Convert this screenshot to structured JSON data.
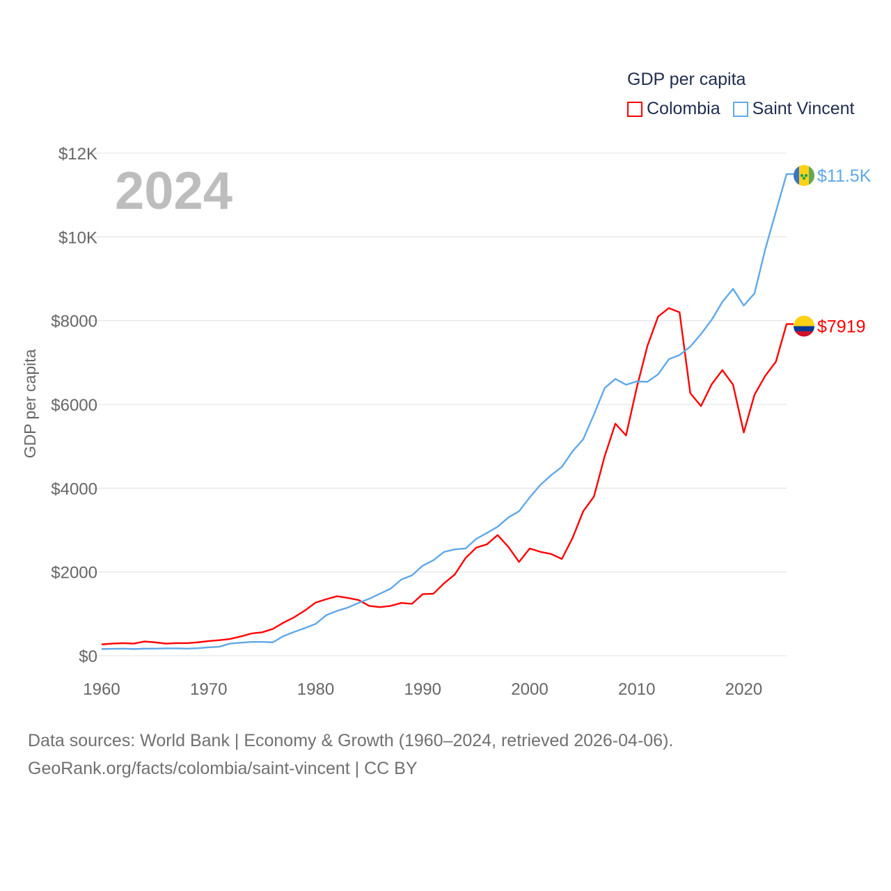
{
  "chart_data": {
    "type": "line",
    "title": "GDP per capita",
    "year_label": "2024",
    "xlabel": "",
    "ylabel": "GDP per capita",
    "xlim": [
      1960,
      2024
    ],
    "ylim": [
      0,
      12000
    ],
    "x_ticks": [
      1960,
      1970,
      1980,
      1990,
      2000,
      2010,
      2020
    ],
    "x_tick_labels": [
      "1960",
      "1970",
      "1980",
      "1990",
      "2000",
      "2010",
      "2020"
    ],
    "y_ticks": [
      0,
      2000,
      4000,
      6000,
      8000,
      10000,
      12000
    ],
    "y_tick_labels": [
      "$0",
      "$2000",
      "$4000",
      "$6000",
      "$8000",
      "$10K",
      "$12K"
    ],
    "grid": true,
    "legend_position": "top-right",
    "x": [
      1960,
      1961,
      1962,
      1963,
      1964,
      1965,
      1966,
      1967,
      1968,
      1969,
      1970,
      1971,
      1972,
      1973,
      1974,
      1975,
      1976,
      1977,
      1978,
      1979,
      1980,
      1981,
      1982,
      1983,
      1984,
      1985,
      1986,
      1987,
      1988,
      1989,
      1990,
      1991,
      1992,
      1993,
      1994,
      1995,
      1996,
      1997,
      1998,
      1999,
      2000,
      2001,
      2002,
      2003,
      2004,
      2005,
      2006,
      2007,
      2008,
      2009,
      2010,
      2011,
      2012,
      2013,
      2014,
      2015,
      2016,
      2017,
      2018,
      2019,
      2020,
      2021,
      2022,
      2023,
      2024
    ],
    "series": [
      {
        "name": "Colombia",
        "color": "#ff0000",
        "end_label": "$7919",
        "flag": "colombia-flag",
        "values": [
          270,
          290,
          300,
          290,
          340,
          320,
          290,
          300,
          300,
          320,
          350,
          370,
          400,
          460,
          530,
          560,
          640,
          790,
          920,
          1080,
          1270,
          1350,
          1420,
          1380,
          1330,
          1190,
          1160,
          1190,
          1260,
          1240,
          1470,
          1480,
          1730,
          1940,
          2330,
          2580,
          2660,
          2880,
          2600,
          2240,
          2560,
          2480,
          2430,
          2310,
          2810,
          3450,
          3800,
          4760,
          5540,
          5260,
          6400,
          7400,
          8100,
          8300,
          8200,
          6270,
          5960,
          6480,
          6820,
          6470,
          5330,
          6230,
          6680,
          7020,
          7919
        ]
      },
      {
        "name": "Saint Vincent",
        "color": "#5fa8e8",
        "end_label": "$11.5K",
        "flag": "saint-vincent-flag",
        "values": [
          160,
          165,
          170,
          160,
          170,
          170,
          175,
          175,
          170,
          180,
          200,
          215,
          290,
          310,
          330,
          330,
          320,
          470,
          570,
          660,
          760,
          970,
          1070,
          1150,
          1260,
          1360,
          1480,
          1600,
          1820,
          1920,
          2150,
          2280,
          2480,
          2540,
          2560,
          2790,
          2930,
          3080,
          3300,
          3450,
          3780,
          4080,
          4310,
          4510,
          4880,
          5170,
          5760,
          6390,
          6610,
          6470,
          6550,
          6540,
          6720,
          7080,
          7180,
          7380,
          7680,
          8020,
          8450,
          8760,
          8360,
          8650,
          9700,
          10600,
          11500
        ]
      }
    ]
  },
  "footer": {
    "line1": "Data sources: World Bank | Economy & Growth (1960–2024, retrieved 2026-04-06).",
    "line2": "GeoRank.org/facts/colombia/saint-vincent | CC BY"
  }
}
